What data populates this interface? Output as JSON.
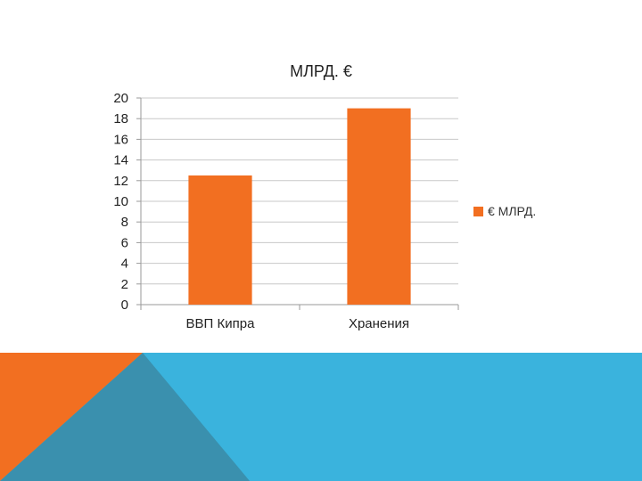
{
  "colors": {
    "bar": "#f26f21",
    "grid": "#c8c8c8",
    "axis": "#9a9a9a",
    "band_blue": "#3ab3dd",
    "band_orange": "#f26f21",
    "band_dark": "#3a90ae"
  },
  "chart_data": {
    "type": "bar",
    "title": "МЛРД. €",
    "categories": [
      "ВВП Кипра",
      "Хранения"
    ],
    "series": [
      {
        "name": "€ МЛРД.",
        "values": [
          12.5,
          19
        ]
      }
    ],
    "ylim": [
      0,
      20
    ],
    "yticks": [
      "0",
      "2",
      "4",
      "6",
      "8",
      "10",
      "12",
      "14",
      "16",
      "18",
      "20"
    ],
    "grid": true,
    "legend": "right"
  }
}
